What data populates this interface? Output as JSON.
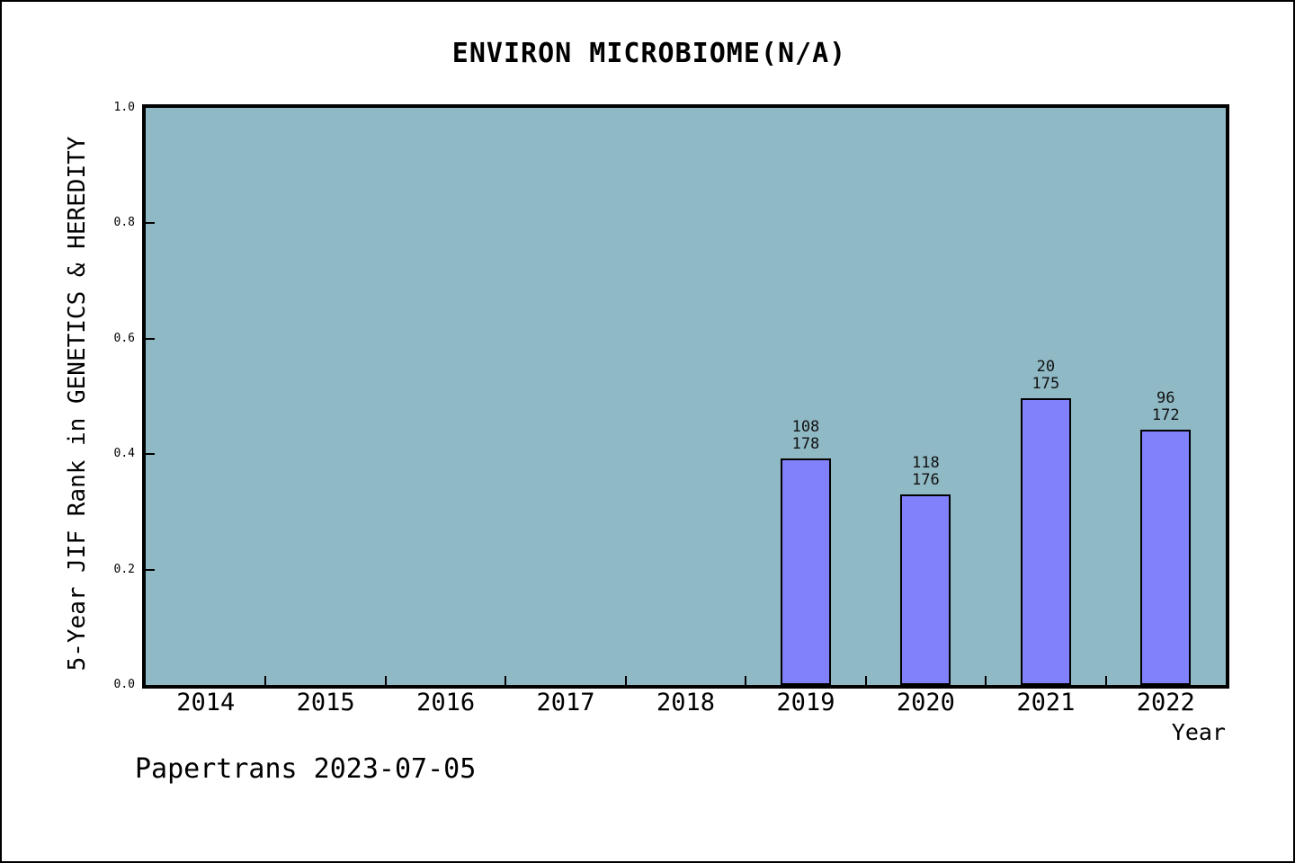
{
  "figure": {
    "footer": "Papertrans 2023-07-05"
  },
  "chart_data": {
    "type": "bar",
    "title": "ENVIRON MICROBIOME(N/A)",
    "xlabel": "Year",
    "ylabel": "5-Year JIF Rank in GENETICS & HEREDITY",
    "categories": [
      "2014",
      "2015",
      "2016",
      "2017",
      "2018",
      "2019",
      "2020",
      "2021",
      "2022"
    ],
    "y_ticks": [
      "0.0",
      "0.2",
      "0.4",
      "0.6",
      "0.8",
      "1.0"
    ],
    "ylim": [
      0.0,
      1.0
    ],
    "grid": "off",
    "legend": "none",
    "bars": [
      {
        "category": "2019",
        "label_top": "108",
        "label_bottom": "178",
        "height": 0.393
      },
      {
        "category": "2020",
        "label_top": "118",
        "label_bottom": "176",
        "height": 0.33
      },
      {
        "category": "2021",
        "label_top": "20",
        "label_bottom": "175",
        "height": 0.497
      },
      {
        "category": "2022",
        "label_top": "96",
        "label_bottom": "172",
        "height": 0.442
      }
    ],
    "colors": {
      "plot_background": "#8FB9C5",
      "bar_fill": "#8182FB",
      "bar_edge": "#000000",
      "axis": "#000000",
      "text": "#000000"
    }
  }
}
